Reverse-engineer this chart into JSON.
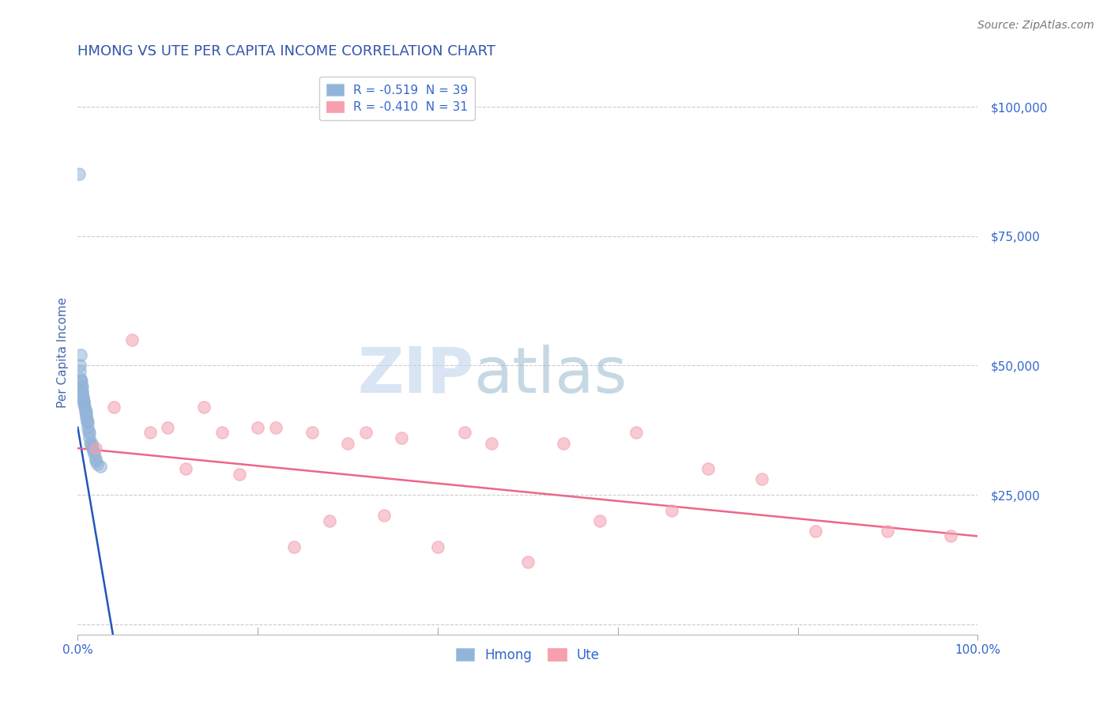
{
  "title": "HMONG VS UTE PER CAPITA INCOME CORRELATION CHART",
  "source": "Source: ZipAtlas.com",
  "ylabel": "Per Capita Income",
  "xlim": [
    0.0,
    100.0
  ],
  "ylim": [
    -2000,
    107000
  ],
  "yticks": [
    0,
    25000,
    50000,
    75000,
    100000
  ],
  "legend_hmong_R": "R = -0.519",
  "legend_hmong_N": "N = 39",
  "legend_ute_R": "R = -0.410",
  "legend_ute_N": "N = 31",
  "hmong_color": "#92B4D8",
  "ute_color": "#F4A0B0",
  "hmong_line_color": "#2255BB",
  "ute_line_color": "#EE6688",
  "title_color": "#3355AA",
  "axis_label_color": "#4466AA",
  "tick_label_color": "#3366CC",
  "source_color": "#777777",
  "grid_color": "#CCCCCC",
  "hmong_x": [
    0.15,
    0.2,
    0.25,
    0.3,
    0.35,
    0.4,
    0.45,
    0.5,
    0.55,
    0.6,
    0.65,
    0.7,
    0.75,
    0.8,
    0.85,
    0.9,
    0.95,
    1.0,
    1.05,
    1.1,
    1.2,
    1.3,
    1.4,
    1.5,
    1.6,
    1.7,
    1.8,
    2.0,
    2.2,
    2.5,
    0.3,
    0.5,
    0.7,
    0.9,
    1.1,
    1.3,
    1.5,
    2.0,
    0.4
  ],
  "hmong_y": [
    87000,
    50000,
    49000,
    47500,
    47000,
    46000,
    45000,
    44500,
    44000,
    43500,
    43000,
    42500,
    42000,
    41500,
    41000,
    40500,
    40000,
    39500,
    39000,
    38000,
    37000,
    36000,
    35000,
    34500,
    34000,
    33500,
    33000,
    31500,
    31000,
    30500,
    52000,
    46000,
    43000,
    41000,
    39000,
    37000,
    35000,
    32000,
    47000
  ],
  "ute_x": [
    2.0,
    4.0,
    6.0,
    8.0,
    10.0,
    12.0,
    14.0,
    16.0,
    18.0,
    20.0,
    22.0,
    24.0,
    26.0,
    28.0,
    30.0,
    32.0,
    34.0,
    36.0,
    40.0,
    43.0,
    46.0,
    50.0,
    54.0,
    58.0,
    62.0,
    66.0,
    70.0,
    76.0,
    82.0,
    90.0,
    97.0
  ],
  "ute_y": [
    34000,
    42000,
    55000,
    37000,
    38000,
    30000,
    42000,
    37000,
    29000,
    38000,
    38000,
    15000,
    37000,
    20000,
    35000,
    37000,
    21000,
    36000,
    15000,
    37000,
    35000,
    12000,
    35000,
    20000,
    37000,
    22000,
    30000,
    28000,
    18000,
    18000,
    17000
  ],
  "hmong_regline_x": [
    0.0,
    4.0
  ],
  "hmong_regline_y": [
    38000,
    -3000
  ],
  "ute_regline_x": [
    0.0,
    100.0
  ],
  "ute_regline_y": [
    34000,
    17000
  ]
}
